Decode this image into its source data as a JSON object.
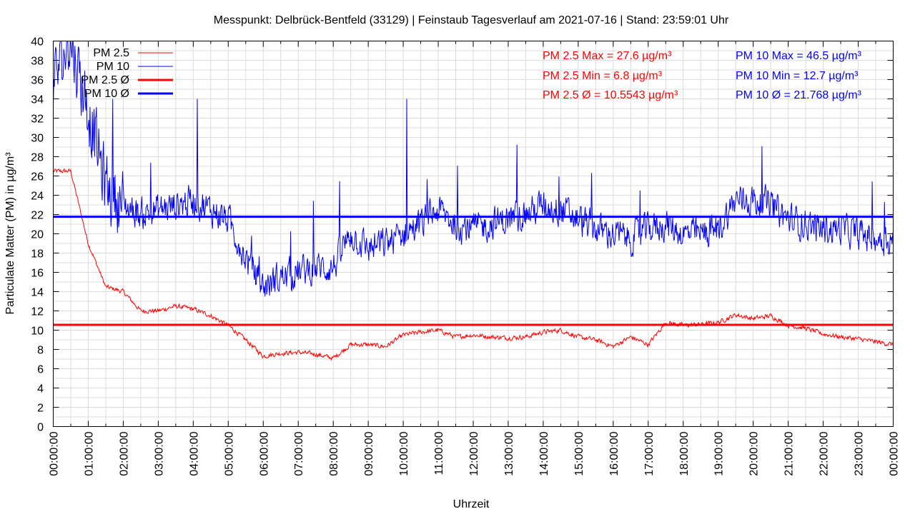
{
  "chart_data": {
    "type": "line",
    "title": "Messpunkt: Delbrück-Bentfeld (33129) | Feinstaub Tagesverlauf am 2021-07-16 | Stand: 23:59:01 Uhr",
    "xlabel": "Uhrzeit",
    "ylabel": "Particulate Matter (PM) in µg/m³",
    "xlim_hours": [
      0,
      24
    ],
    "ylim": [
      0,
      40
    ],
    "grid": true,
    "legend_placement": "top-left",
    "yticks": [
      "0",
      "2",
      "4",
      "6",
      "8",
      "10",
      "12",
      "14",
      "16",
      "18",
      "20",
      "22",
      "24",
      "26",
      "28",
      "30",
      "32",
      "34",
      "36",
      "38",
      "40"
    ],
    "xticks": [
      "00:00:00",
      "01:00:00",
      "02:00:00",
      "03:00:00",
      "04:00:00",
      "05:00:00",
      "06:00:00",
      "07:00:00",
      "08:00:00",
      "09:00:00",
      "10:00:00",
      "11:00:00",
      "12:00:00",
      "13:00:00",
      "14:00:00",
      "15:00:00",
      "16:00:00",
      "17:00:00",
      "18:00:00",
      "19:00:00",
      "20:00:00",
      "21:00:00",
      "22:00:00",
      "23:00:00",
      "00:00:00"
    ],
    "x_hours": [
      0,
      0.5,
      1,
      1.5,
      2,
      2.5,
      3,
      3.5,
      4,
      4.5,
      5,
      5.5,
      6,
      6.5,
      7,
      7.5,
      8,
      8.5,
      9,
      9.5,
      10,
      10.5,
      11,
      11.5,
      12,
      12.5,
      13,
      13.5,
      14,
      14.5,
      15,
      15.5,
      16,
      16.5,
      17,
      17.5,
      18,
      18.5,
      19,
      19.5,
      20,
      20.5,
      21,
      21.5,
      22,
      22.5,
      23,
      23.5,
      24
    ],
    "series": [
      {
        "name": "PM 2.5",
        "color": "#ff0000",
        "values": [
          26.5,
          26.5,
          19,
          14.5,
          14,
          12,
          12,
          12.5,
          12.2,
          11.5,
          10.5,
          9,
          7.3,
          7.6,
          7.7,
          7.5,
          7.1,
          8.5,
          8.5,
          8.3,
          9.5,
          9.8,
          10,
          9.3,
          9.5,
          9.3,
          9.2,
          9.3,
          9.8,
          10,
          9.3,
          9,
          8.3,
          9.3,
          8.5,
          10.8,
          10.5,
          10.6,
          10.8,
          11.6,
          11.2,
          11.5,
          10.5,
          10.2,
          9.6,
          9.3,
          9.1,
          8.8,
          8.5
        ]
      },
      {
        "name": "PM 10",
        "color": "#0000ff",
        "values": [
          36,
          40,
          33,
          25,
          23,
          22,
          22.5,
          23,
          23.5,
          22.5,
          21.5,
          17.5,
          14.5,
          15.5,
          16,
          16.5,
          16.5,
          20,
          18.5,
          19,
          20,
          21,
          22.5,
          21,
          20.5,
          21,
          21.5,
          22,
          23,
          22.5,
          21.5,
          20.5,
          20,
          19.5,
          20.5,
          21,
          20,
          20,
          20.5,
          23.5,
          23.5,
          23,
          21.5,
          21,
          20.5,
          20.5,
          20,
          19.5,
          19.5
        ]
      }
    ],
    "averages": [
      {
        "name": "PM 2.5 Ø",
        "value": 10.5543,
        "color": "#ff0000"
      },
      {
        "name": "PM 10 Ø",
        "value": 21.768,
        "color": "#0000ff"
      }
    ],
    "stats": {
      "pm25": [
        "PM 2.5 Max = 27.6 µg/m³",
        "PM 2.5 Min = 6.8 µg/m³",
        "PM 2.5 Ø = 10.5543 µg/m³"
      ],
      "pm10": [
        "PM 10 Max = 46.5 µg/m³",
        "PM 10 Min = 12.7 µg/m³",
        "PM 10 Ø = 21.768 µg/m³"
      ]
    }
  }
}
